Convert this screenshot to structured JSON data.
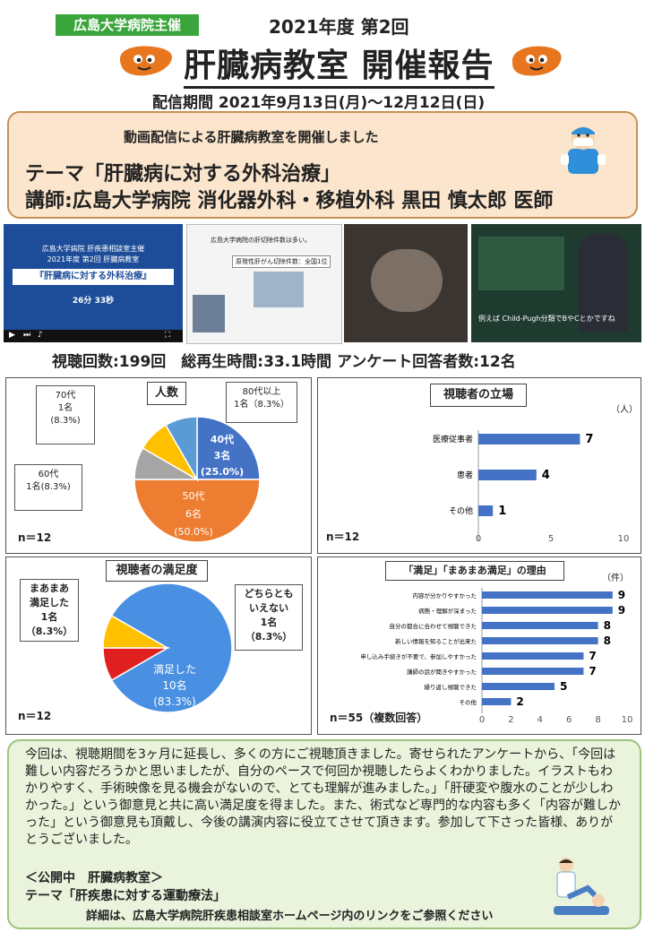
{
  "header": {
    "badge": "広島大学病院主催",
    "edition": "2021年度 第2回",
    "title": "肝臓病教室 開催報告",
    "period": "配信期間 2021年9月13日(月)～12月12日(日)"
  },
  "theme": {
    "intro": "動画配信による肝臓病教室を開催しました",
    "title": "テーマ「肝臓病に対する外科治療」",
    "lecturer": "講師:広島大学病院 消化器外科・移植外科 黒田 慎太郎 医師"
  },
  "screenshots": {
    "slide1": {
      "line1": "広島大学病院 肝疾患相談室主催",
      "line2": "2021年度 第2回 肝臓病教室",
      "title": "『肝臓病に対する外科治療』",
      "duration": "26分 33秒"
    },
    "slide2": {
      "line1": "広島大学病院の肝切除件数は多い。",
      "line2": "原発性肝がん切除件数：全国1位"
    },
    "slide4": {
      "caption": "例えば Child-Pugh分類でBやCとかですね"
    }
  },
  "stats": "視聴回数:199回　総再生時間:33.1時間 アンケート回答者数:12名",
  "chart_data": [
    {
      "type": "pie",
      "title": "人数",
      "n": "n＝12",
      "slices": [
        {
          "label": "40代",
          "count": "3名",
          "percent": "(25.0%)",
          "value": 3,
          "color": "#4472c4"
        },
        {
          "label": "50代",
          "count": "6名",
          "percent": "(50.0%)",
          "value": 6,
          "color": "#ed7d31"
        },
        {
          "label": "60代",
          "count": "1名(8.3%)",
          "value": 1,
          "color": "#a5a5a5"
        },
        {
          "label": "70代",
          "count": "1名",
          "percent": "(8.3%)",
          "value": 1,
          "color": "#ffc000"
        },
        {
          "label": "80代以上",
          "count": "1名（8.3%）",
          "value": 1,
          "color": "#5b9bd5"
        }
      ]
    },
    {
      "type": "bar",
      "title": "視聴者の立場",
      "unit": "（人）",
      "n": "n＝12",
      "categories": [
        "医療従事者",
        "患者",
        "その他"
      ],
      "values": [
        7,
        4,
        1
      ],
      "xlim": [
        0,
        10
      ],
      "ticks": [
        "0",
        "5",
        "10"
      ],
      "color": "#4472c4"
    },
    {
      "type": "pie",
      "title": "視聴者の満足度",
      "n": "n＝12",
      "slices": [
        {
          "label": "満足した",
          "count": "10名",
          "percent": "(83.3%)",
          "value": 10,
          "color": "#4a90e2"
        },
        {
          "label": "まあまあ満足した",
          "label_lines": [
            "まあまあ",
            "満足した"
          ],
          "count": "1名",
          "percent": "（8.3%）",
          "value": 1,
          "color": "#e02020"
        },
        {
          "label": "どちらともいえない",
          "label_lines": [
            "どちらとも",
            "いえない"
          ],
          "count": "1名",
          "percent": "（8.3%）",
          "value": 1,
          "color": "#ffc000"
        }
      ]
    },
    {
      "type": "bar",
      "title": "「満足」「まあまあ満足」の理由",
      "unit": "（件）",
      "n": "n＝55（複数回答）",
      "categories": [
        "内容が分かりやすかった",
        "病態・理解が深まった",
        "自分の都合に合わせて視聴できた",
        "新しい情報を知ることが出来た",
        "申し込み手続きが不要で、参加しやすかった",
        "講師の話が聞きやすかった",
        "繰り返し視聴できた",
        "その他"
      ],
      "values": [
        9,
        9,
        8,
        8,
        7,
        7,
        5,
        2
      ],
      "xlim": [
        0,
        10
      ],
      "ticks": [
        "0",
        "2",
        "4",
        "6",
        "8",
        "10"
      ],
      "color": "#4472c4"
    }
  ],
  "comment": "今回は、視聴期間を3ヶ月に延長し、多くの方にご視聴頂きました。寄せられたアンケートから、「今回は難しい内容だろうかと思いましたが、自分のペースで何回か視聴したらよくわかりました。イラストもわかりやすく、手術映像を見る機会がないので、とても理解が進みました。」「肝硬変や腹水のことが少しわかった。」という御意見と共に高い満足度を得ました。また、術式など専門的な内容も多く「内容が難しかった」という御意見も頂戴し、今後の講演内容に役立てさせて頂きます。参加して下さった皆様、ありがとうございました。",
  "footer": {
    "line1": "＜公開中　肝臓病教室＞",
    "line2": "テーマ「肝疾患に対する運動療法」",
    "line3": "詳細は、広島大学病院肝疾患相談室ホームページ内のリンクをご参照ください"
  }
}
